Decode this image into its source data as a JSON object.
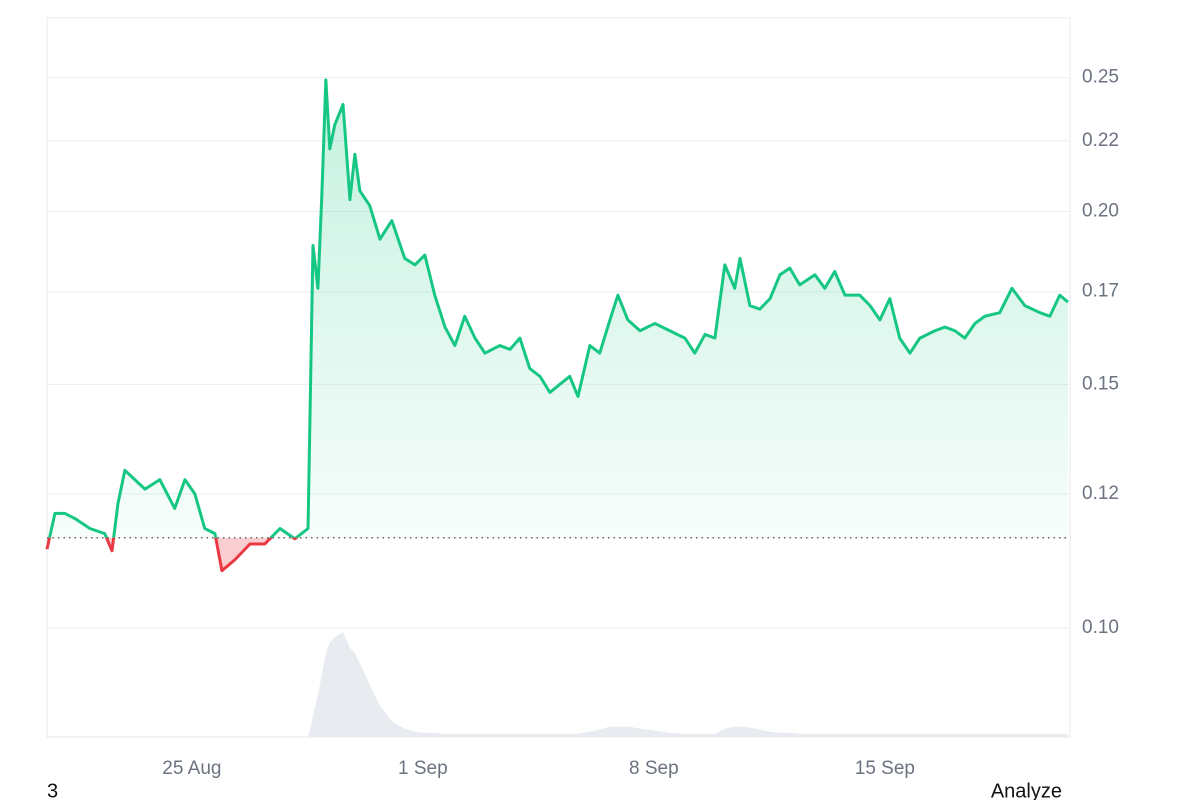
{
  "chart_data": {
    "type": "line",
    "log_scale": true,
    "grid": true,
    "x": [
      20.61,
      20.85,
      21.15,
      21.45,
      21.91,
      22.36,
      22.58,
      22.76,
      22.97,
      23.27,
      23.58,
      24.03,
      24.48,
      24.79,
      25.09,
      25.39,
      25.7,
      25.91,
      26.3,
      26.76,
      27.21,
      27.67,
      28.12,
      28.52,
      28.67,
      28.82,
      28.94,
      29.06,
      29.18,
      29.33,
      29.58,
      29.79,
      29.94,
      30.09,
      30.39,
      30.7,
      31.06,
      31.45,
      31.76,
      32.06,
      32.36,
      32.67,
      32.97,
      33.27,
      33.58,
      33.88,
      34.33,
      34.64,
      34.94,
      35.24,
      35.55,
      35.85,
      36.15,
      36.45,
      36.7,
      37.06,
      37.36,
      37.67,
      37.91,
      38.21,
      38.58,
      39.03,
      39.48,
      39.94,
      40.24,
      40.55,
      40.85,
      41.15,
      41.45,
      41.61,
      41.91,
      42.21,
      42.52,
      42.82,
      43.12,
      43.42,
      43.88,
      44.18,
      44.48,
      44.79,
      45.24,
      45.55,
      45.85,
      46.15,
      46.45,
      46.76,
      47.06,
      47.52,
      47.82,
      48.12,
      48.42,
      48.73,
      49.03,
      49.48,
      49.85,
      50.24,
      50.7,
      51.0,
      51.3,
      51.55
    ],
    "series": [
      {
        "color": "#16c784",
        "values": [
          0.114,
          0.121,
          0.121,
          0.12,
          0.118,
          0.117,
          0.1137,
          0.123,
          0.13,
          0.128,
          0.126,
          0.128,
          0.122,
          0.128,
          0.125,
          0.118,
          0.117,
          0.11,
          0.112,
          0.115,
          0.115,
          0.118,
          0.116,
          0.118,
          0.189,
          0.176,
          0.206,
          0.249,
          0.222,
          0.231,
          0.239,
          0.204,
          0.22,
          0.207,
          0.202,
          0.191,
          0.197,
          0.185,
          0.183,
          0.186,
          0.174,
          0.165,
          0.16,
          0.168,
          0.162,
          0.158,
          0.16,
          0.159,
          0.162,
          0.154,
          0.152,
          0.148,
          0.15,
          0.152,
          0.147,
          0.16,
          0.158,
          0.167,
          0.174,
          0.167,
          0.164,
          0.166,
          0.164,
          0.162,
          0.158,
          0.163,
          0.162,
          0.183,
          0.176,
          0.185,
          0.171,
          0.17,
          0.173,
          0.18,
          0.182,
          0.177,
          0.18,
          0.176,
          0.181,
          0.174,
          0.174,
          0.171,
          0.167,
          0.173,
          0.162,
          0.158,
          0.162,
          0.164,
          0.165,
          0.164,
          0.162,
          0.166,
          0.168,
          0.169,
          0.176,
          0.171,
          0.169,
          0.168,
          0.174,
          0.172
        ]
      }
    ],
    "negative_color": "#ea3943",
    "baseline": 0.1162,
    "volume": [
      0,
      0,
      0,
      0,
      0,
      0,
      0,
      0,
      0,
      0,
      0,
      0,
      0,
      0,
      0,
      0,
      0,
      0,
      0,
      0,
      0,
      0,
      0,
      0,
      20,
      40,
      60,
      80,
      90,
      95,
      100,
      85,
      80,
      70,
      50,
      30,
      15,
      8,
      5,
      4,
      4,
      3,
      3,
      3,
      3,
      3,
      3,
      3,
      3,
      3,
      3,
      3,
      3,
      3,
      3,
      5,
      7,
      10,
      10,
      10,
      8,
      6,
      4,
      3,
      3,
      3,
      3,
      8,
      10,
      10,
      9,
      7,
      5,
      4,
      4,
      3,
      3,
      3,
      3,
      3,
      3,
      3,
      3,
      3,
      3,
      3,
      3,
      3,
      3,
      3,
      3,
      3,
      3,
      3,
      3,
      3,
      3,
      3,
      3,
      3
    ],
    "volume_ylim": [
      0,
      100
    ],
    "volume_color": "#e8ecf0",
    "xlim": [
      20.61,
      51.61
    ],
    "xticks": [
      {
        "value": 25,
        "label": "25 Aug"
      },
      {
        "value": 32,
        "label": "1 Sep"
      },
      {
        "value": 39,
        "label": "8 Sep"
      },
      {
        "value": 46,
        "label": "15 Sep"
      }
    ],
    "ylim": [
      0.0834,
      0.276
    ],
    "yticks": [
      {
        "value": 0.1,
        "label": "0.10"
      },
      {
        "value": 0.125,
        "label": "0.12"
      },
      {
        "value": 0.15,
        "label": "0.15"
      },
      {
        "value": 0.175,
        "label": "0.17"
      },
      {
        "value": 0.2,
        "label": "0.20"
      },
      {
        "value": 0.225,
        "label": "0.22"
      },
      0.25
    ]
  },
  "footer": {
    "left": "3",
    "right": "Analyze"
  }
}
